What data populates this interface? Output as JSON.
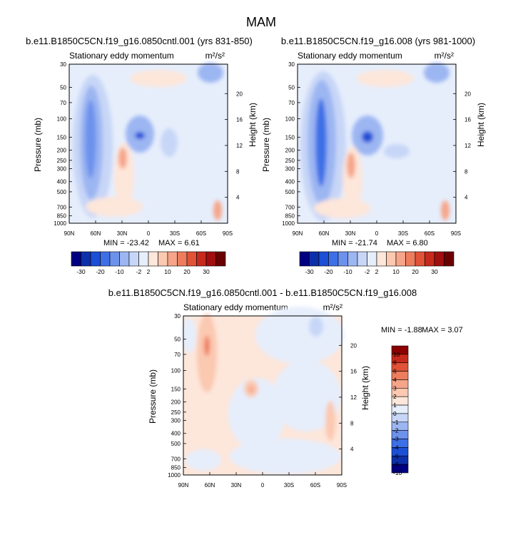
{
  "page_title": "MAM",
  "colors": {
    "diverging_main": [
      "#000080",
      "#0d2fa8",
      "#1c4fd6",
      "#3d6fe6",
      "#6d92ec",
      "#9cb6f2",
      "#c7d6f7",
      "#e6eefc",
      "#fde6da",
      "#fbc8b0",
      "#f6a58a",
      "#ee7d5e",
      "#e05338",
      "#c62a1d",
      "#a00e0e",
      "#6b0000"
    ],
    "diverging_diff": [
      "#000080",
      "#0d2fa8",
      "#1c4fd6",
      "#3d6fe6",
      "#6d92ec",
      "#9cb6f2",
      "#c7d6f7",
      "#e6eefc",
      "#fde6da",
      "#fbc8b0",
      "#f6a58a",
      "#ee7d5e",
      "#e05338",
      "#c62a1d",
      "#8b0000"
    ]
  },
  "chart_data": [
    {
      "type": "heatmap",
      "panel": "top-left",
      "title": "b.e11.B1850C5CN.f19_g16.0850cntl.001 (yrs 831-850)",
      "subtitle_left": "Stationary eddy momentum",
      "units": "m²/s²",
      "xlabel": "",
      "ylabel": "Pressure (mb)",
      "ylabel_right": "Height (km)",
      "x_tick_labels": [
        "90N",
        "60N",
        "30N",
        "0",
        "30S",
        "60S",
        "90S"
      ],
      "x_tick_values": [
        90,
        60,
        30,
        0,
        -30,
        -60,
        -90
      ],
      "y_tick_labels": [
        "30",
        "50",
        "70",
        "100",
        "150",
        "200",
        "250",
        "300",
        "400",
        "500",
        "700",
        "850",
        "1000"
      ],
      "y_tick_values": [
        30,
        50,
        70,
        100,
        150,
        200,
        250,
        300,
        400,
        500,
        700,
        850,
        1000
      ],
      "y_right_tick_labels": [
        "20",
        "16",
        "12",
        "8",
        "4"
      ],
      "y_right_tick_values": [
        20,
        16,
        12,
        8,
        4
      ],
      "min_label": "MIN = -23.42",
      "max_label": "MAX =   6.61",
      "features": [
        {
          "lat": 62,
          "p": 150,
          "value": -20
        },
        {
          "lat": 12,
          "p": 150,
          "value": -12
        },
        {
          "lat": -5,
          "p": 200,
          "value": -8
        },
        {
          "lat": 28,
          "p": 250,
          "value": 5
        },
        {
          "lat": -20,
          "p": 35,
          "value": -6
        },
        {
          "lat": -80,
          "p": 900,
          "value": 4
        }
      ],
      "colorbar_labels": [
        "-30",
        "-20",
        "-10",
        "-2",
        "2",
        "10",
        "20",
        "30"
      ]
    },
    {
      "type": "heatmap",
      "panel": "top-right",
      "title": "b.e11.B1850C5CN.f19_g16.008 (yrs 981-1000)",
      "subtitle_left": "Stationary eddy momentum",
      "units": "m²/s²",
      "xlabel": "",
      "ylabel": "Pressure (mb)",
      "ylabel_right": "Height (km)",
      "x_tick_labels": [
        "90N",
        "60N",
        "30N",
        "0",
        "30S",
        "60S",
        "90S"
      ],
      "x_tick_values": [
        90,
        60,
        30,
        0,
        -30,
        -60,
        -90
      ],
      "y_tick_labels": [
        "30",
        "50",
        "70",
        "100",
        "150",
        "200",
        "250",
        "300",
        "400",
        "500",
        "700",
        "850",
        "1000"
      ],
      "y_tick_values": [
        30,
        50,
        70,
        100,
        150,
        200,
        250,
        300,
        400,
        500,
        700,
        850,
        1000
      ],
      "y_right_tick_labels": [
        "20",
        "16",
        "12",
        "8",
        "4"
      ],
      "y_right_tick_values": [
        20,
        16,
        12,
        8,
        4
      ],
      "min_label": "MIN = -21.74",
      "max_label": "MAX =   6.80",
      "features": [
        {
          "lat": 62,
          "p": 150,
          "value": -21
        },
        {
          "lat": 12,
          "p": 150,
          "value": -13
        },
        {
          "lat": -8,
          "p": 200,
          "value": -7
        },
        {
          "lat": 28,
          "p": 250,
          "value": 5
        },
        {
          "lat": -20,
          "p": 35,
          "value": -7
        },
        {
          "lat": -82,
          "p": 900,
          "value": 4
        }
      ],
      "colorbar_labels": [
        "-30",
        "-20",
        "-10",
        "-2",
        "2",
        "10",
        "20",
        "30"
      ]
    },
    {
      "type": "heatmap",
      "panel": "bottom-difference",
      "title": "b.e11.B1850C5CN.f19_g16.0850cntl.001 - b.e11.B1850C5CN.f19_g16.008",
      "subtitle_left": "Stationary eddy momentum",
      "units": "m²/s²",
      "xlabel": "",
      "ylabel": "Pressure (mb)",
      "ylabel_right": "Height (km)",
      "x_tick_labels": [
        "90N",
        "60N",
        "30N",
        "0",
        "30S",
        "60S",
        "90S"
      ],
      "x_tick_values": [
        90,
        60,
        30,
        0,
        -30,
        -60,
        -90
      ],
      "y_tick_labels": [
        "30",
        "50",
        "70",
        "100",
        "150",
        "200",
        "250",
        "300",
        "400",
        "500",
        "700",
        "850",
        "1000"
      ],
      "y_tick_values": [
        30,
        50,
        70,
        100,
        150,
        200,
        250,
        300,
        400,
        500,
        700,
        850,
        1000
      ],
      "y_right_tick_labels": [
        "20",
        "16",
        "12",
        "8",
        "4"
      ],
      "y_right_tick_values": [
        20,
        16,
        12,
        8,
        4
      ],
      "min_label": "MIN =  -1.88",
      "max_label": "MAX =   3.07",
      "features": [
        {
          "lat": 64,
          "p": 60,
          "value": 3
        },
        {
          "lat": 15,
          "p": 150,
          "value": 2
        },
        {
          "lat": -80,
          "p": 300,
          "value": 2
        },
        {
          "lat": -60,
          "p": 40,
          "value": -1
        }
      ],
      "colorbar_labels": [
        "10",
        "8",
        "6",
        "4",
        "3",
        "2",
        "1",
        "0",
        "-1",
        "-2",
        "-3",
        "-4",
        "-6",
        "-8",
        "-10"
      ]
    }
  ]
}
